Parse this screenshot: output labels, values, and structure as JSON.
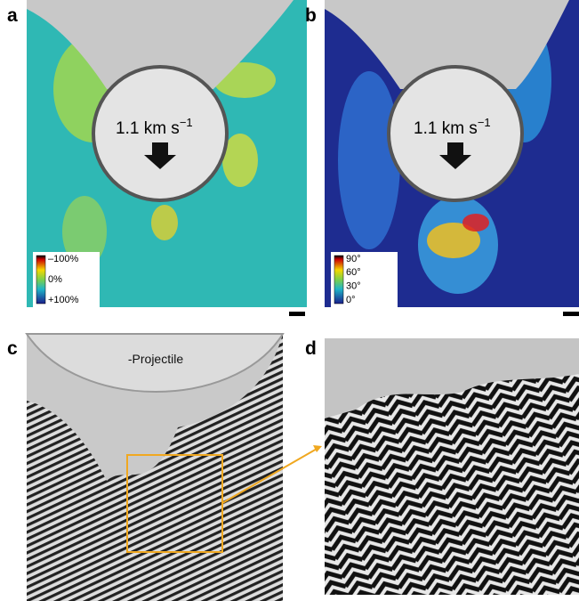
{
  "panels": [
    {
      "label": "a",
      "speed": {
        "text": "1.1 km s",
        "sup": "−1"
      },
      "colorbar": [
        "–100%",
        "0%",
        "+100%"
      ]
    },
    {
      "label": "b",
      "speed": {
        "text": "1.1 km s",
        "sup": "−1"
      },
      "colorbar": [
        "90°",
        "60°",
        "30°",
        "0°"
      ]
    },
    {
      "label": "c",
      "annotation": "-Projectile"
    },
    {
      "label": "d"
    }
  ]
}
